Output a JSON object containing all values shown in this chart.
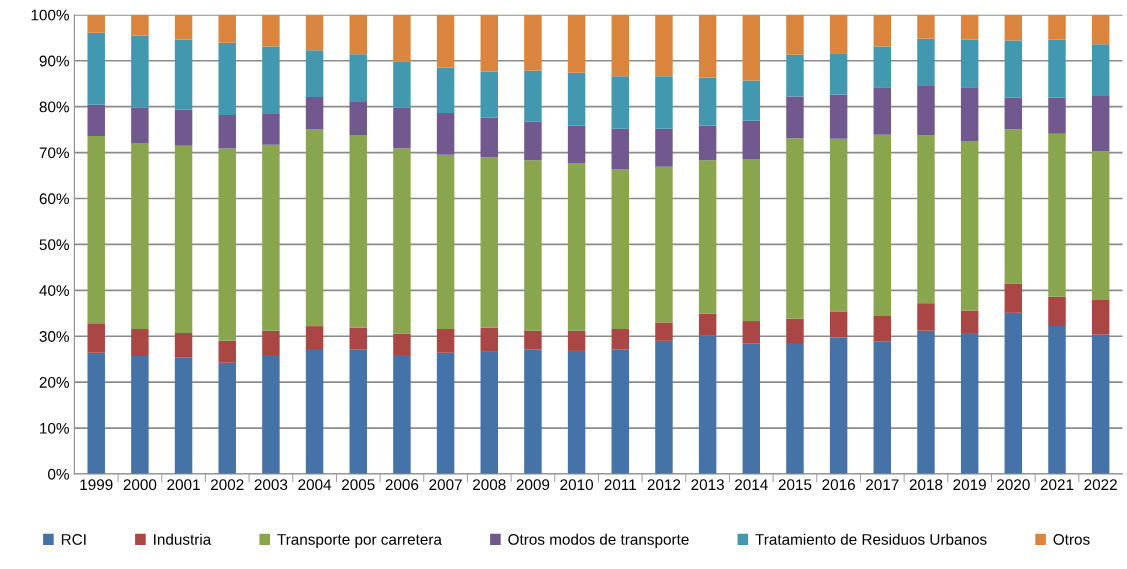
{
  "chart_data": {
    "type": "bar",
    "stacked": true,
    "categories": [
      "1999",
      "2000",
      "2001",
      "2002",
      "2003",
      "2004",
      "2005",
      "2006",
      "2007",
      "2008",
      "2009",
      "2010",
      "2011",
      "2012",
      "2013",
      "2014",
      "2015",
      "2016",
      "2017",
      "2018",
      "2019",
      "2020",
      "2021",
      "2022"
    ],
    "series": [
      {
        "name": "RCI",
        "color": "#4572a7",
        "values": [
          26.4,
          25.7,
          25.4,
          24.2,
          25.9,
          27.2,
          27.1,
          25.7,
          26.4,
          26.6,
          27.1,
          26.8,
          27.1,
          29.0,
          30.1,
          28.4,
          28.5,
          29.8,
          28.8,
          31.2,
          30.5,
          35.1,
          32.2,
          30.3
        ]
      },
      {
        "name": "Industria",
        "color": "#aa4643",
        "values": [
          6.4,
          5.9,
          5.3,
          4.8,
          5.3,
          5.0,
          4.8,
          4.9,
          5.2,
          5.3,
          4.1,
          4.4,
          4.5,
          4.0,
          4.8,
          4.9,
          5.3,
          5.6,
          5.6,
          6.0,
          5.1,
          6.4,
          6.4,
          7.6
        ]
      },
      {
        "name": "Transporte por carretera",
        "color": "#89a54e",
        "values": [
          40.8,
          40.5,
          40.8,
          41.9,
          40.5,
          42.8,
          41.9,
          40.3,
          37.9,
          37.0,
          37.1,
          36.5,
          34.7,
          33.9,
          33.4,
          35.3,
          39.3,
          37.6,
          39.5,
          36.5,
          36.9,
          33.6,
          35.5,
          32.4
        ]
      },
      {
        "name": "Otros modos de transporte",
        "color": "#71588f",
        "values": [
          6.8,
          7.7,
          7.9,
          7.3,
          6.7,
          7.1,
          7.2,
          8.9,
          9.1,
          8.7,
          8.4,
          8.2,
          8.9,
          8.3,
          7.6,
          8.3,
          9.1,
          9.6,
          10.3,
          10.8,
          11.7,
          6.9,
          7.9,
          12.0
        ]
      },
      {
        "name": "Tratamiento de Residuos Urbanos",
        "color": "#4198af",
        "values": [
          15.7,
          15.7,
          15.2,
          15.7,
          14.7,
          10.2,
          10.4,
          10.0,
          9.9,
          10.0,
          11.1,
          11.5,
          11.4,
          11.4,
          10.4,
          8.8,
          9.1,
          9.0,
          8.9,
          10.3,
          10.4,
          12.4,
          12.6,
          11.3
        ]
      },
      {
        "name": "Otros",
        "color": "#db843d",
        "values": [
          3.9,
          4.5,
          5.4,
          6.1,
          6.9,
          7.7,
          8.6,
          10.2,
          11.5,
          12.4,
          12.2,
          12.6,
          13.4,
          13.4,
          13.7,
          14.3,
          8.7,
          8.4,
          6.9,
          5.2,
          5.4,
          5.6,
          5.4,
          6.4
        ]
      }
    ],
    "ylim": [
      0,
      100
    ],
    "yticks": [
      {
        "value": 0,
        "label": "0%"
      },
      {
        "value": 10,
        "label": "10%"
      },
      {
        "value": 20,
        "label": "20%"
      },
      {
        "value": 30,
        "label": "30%"
      },
      {
        "value": 40,
        "label": "40%"
      },
      {
        "value": 50,
        "label": "50%"
      },
      {
        "value": 60,
        "label": "60%"
      },
      {
        "value": 70,
        "label": "70%"
      },
      {
        "value": 80,
        "label": "80%"
      },
      {
        "value": 90,
        "label": "90%"
      },
      {
        "value": 100,
        "label": "100%"
      }
    ],
    "grid": "y",
    "legend": "bottom"
  }
}
